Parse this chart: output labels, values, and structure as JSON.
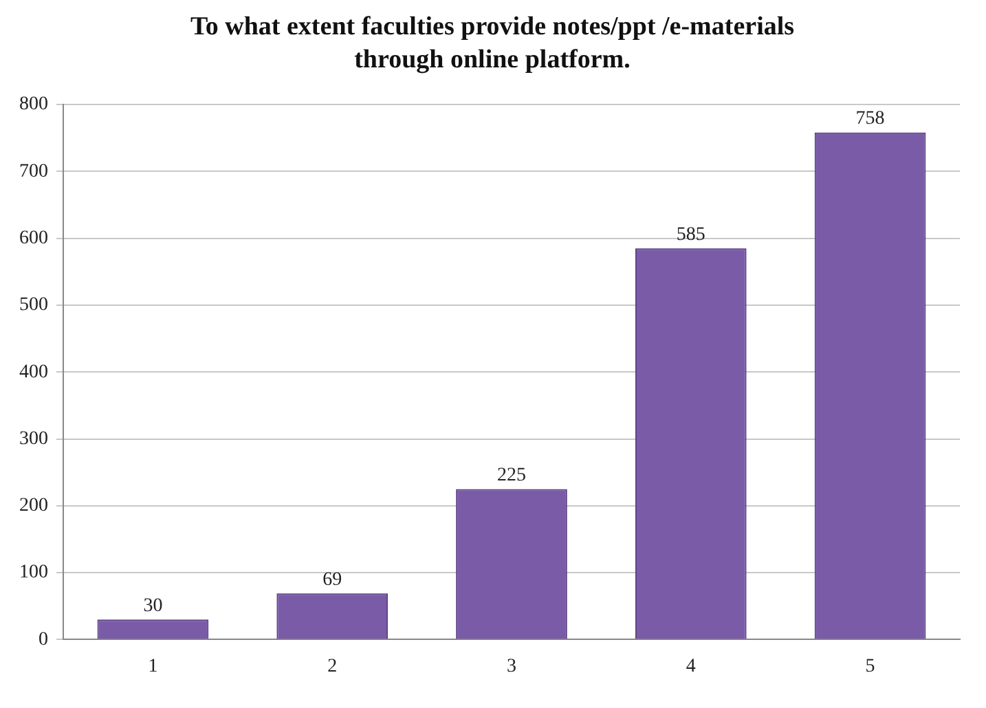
{
  "chart_data": {
    "type": "bar",
    "title": "To what extent faculties provide notes/ppt /e-materials through online platform.",
    "categories": [
      "1",
      "2",
      "3",
      "4",
      "5"
    ],
    "values": [
      30,
      69,
      225,
      585,
      758
    ],
    "color": "#7a5ba8",
    "ylim": [
      0,
      800
    ],
    "yticks": [
      0,
      100,
      200,
      300,
      400,
      500,
      600,
      700,
      800
    ],
    "grid": "y",
    "data_labels": true,
    "legend": false
  }
}
